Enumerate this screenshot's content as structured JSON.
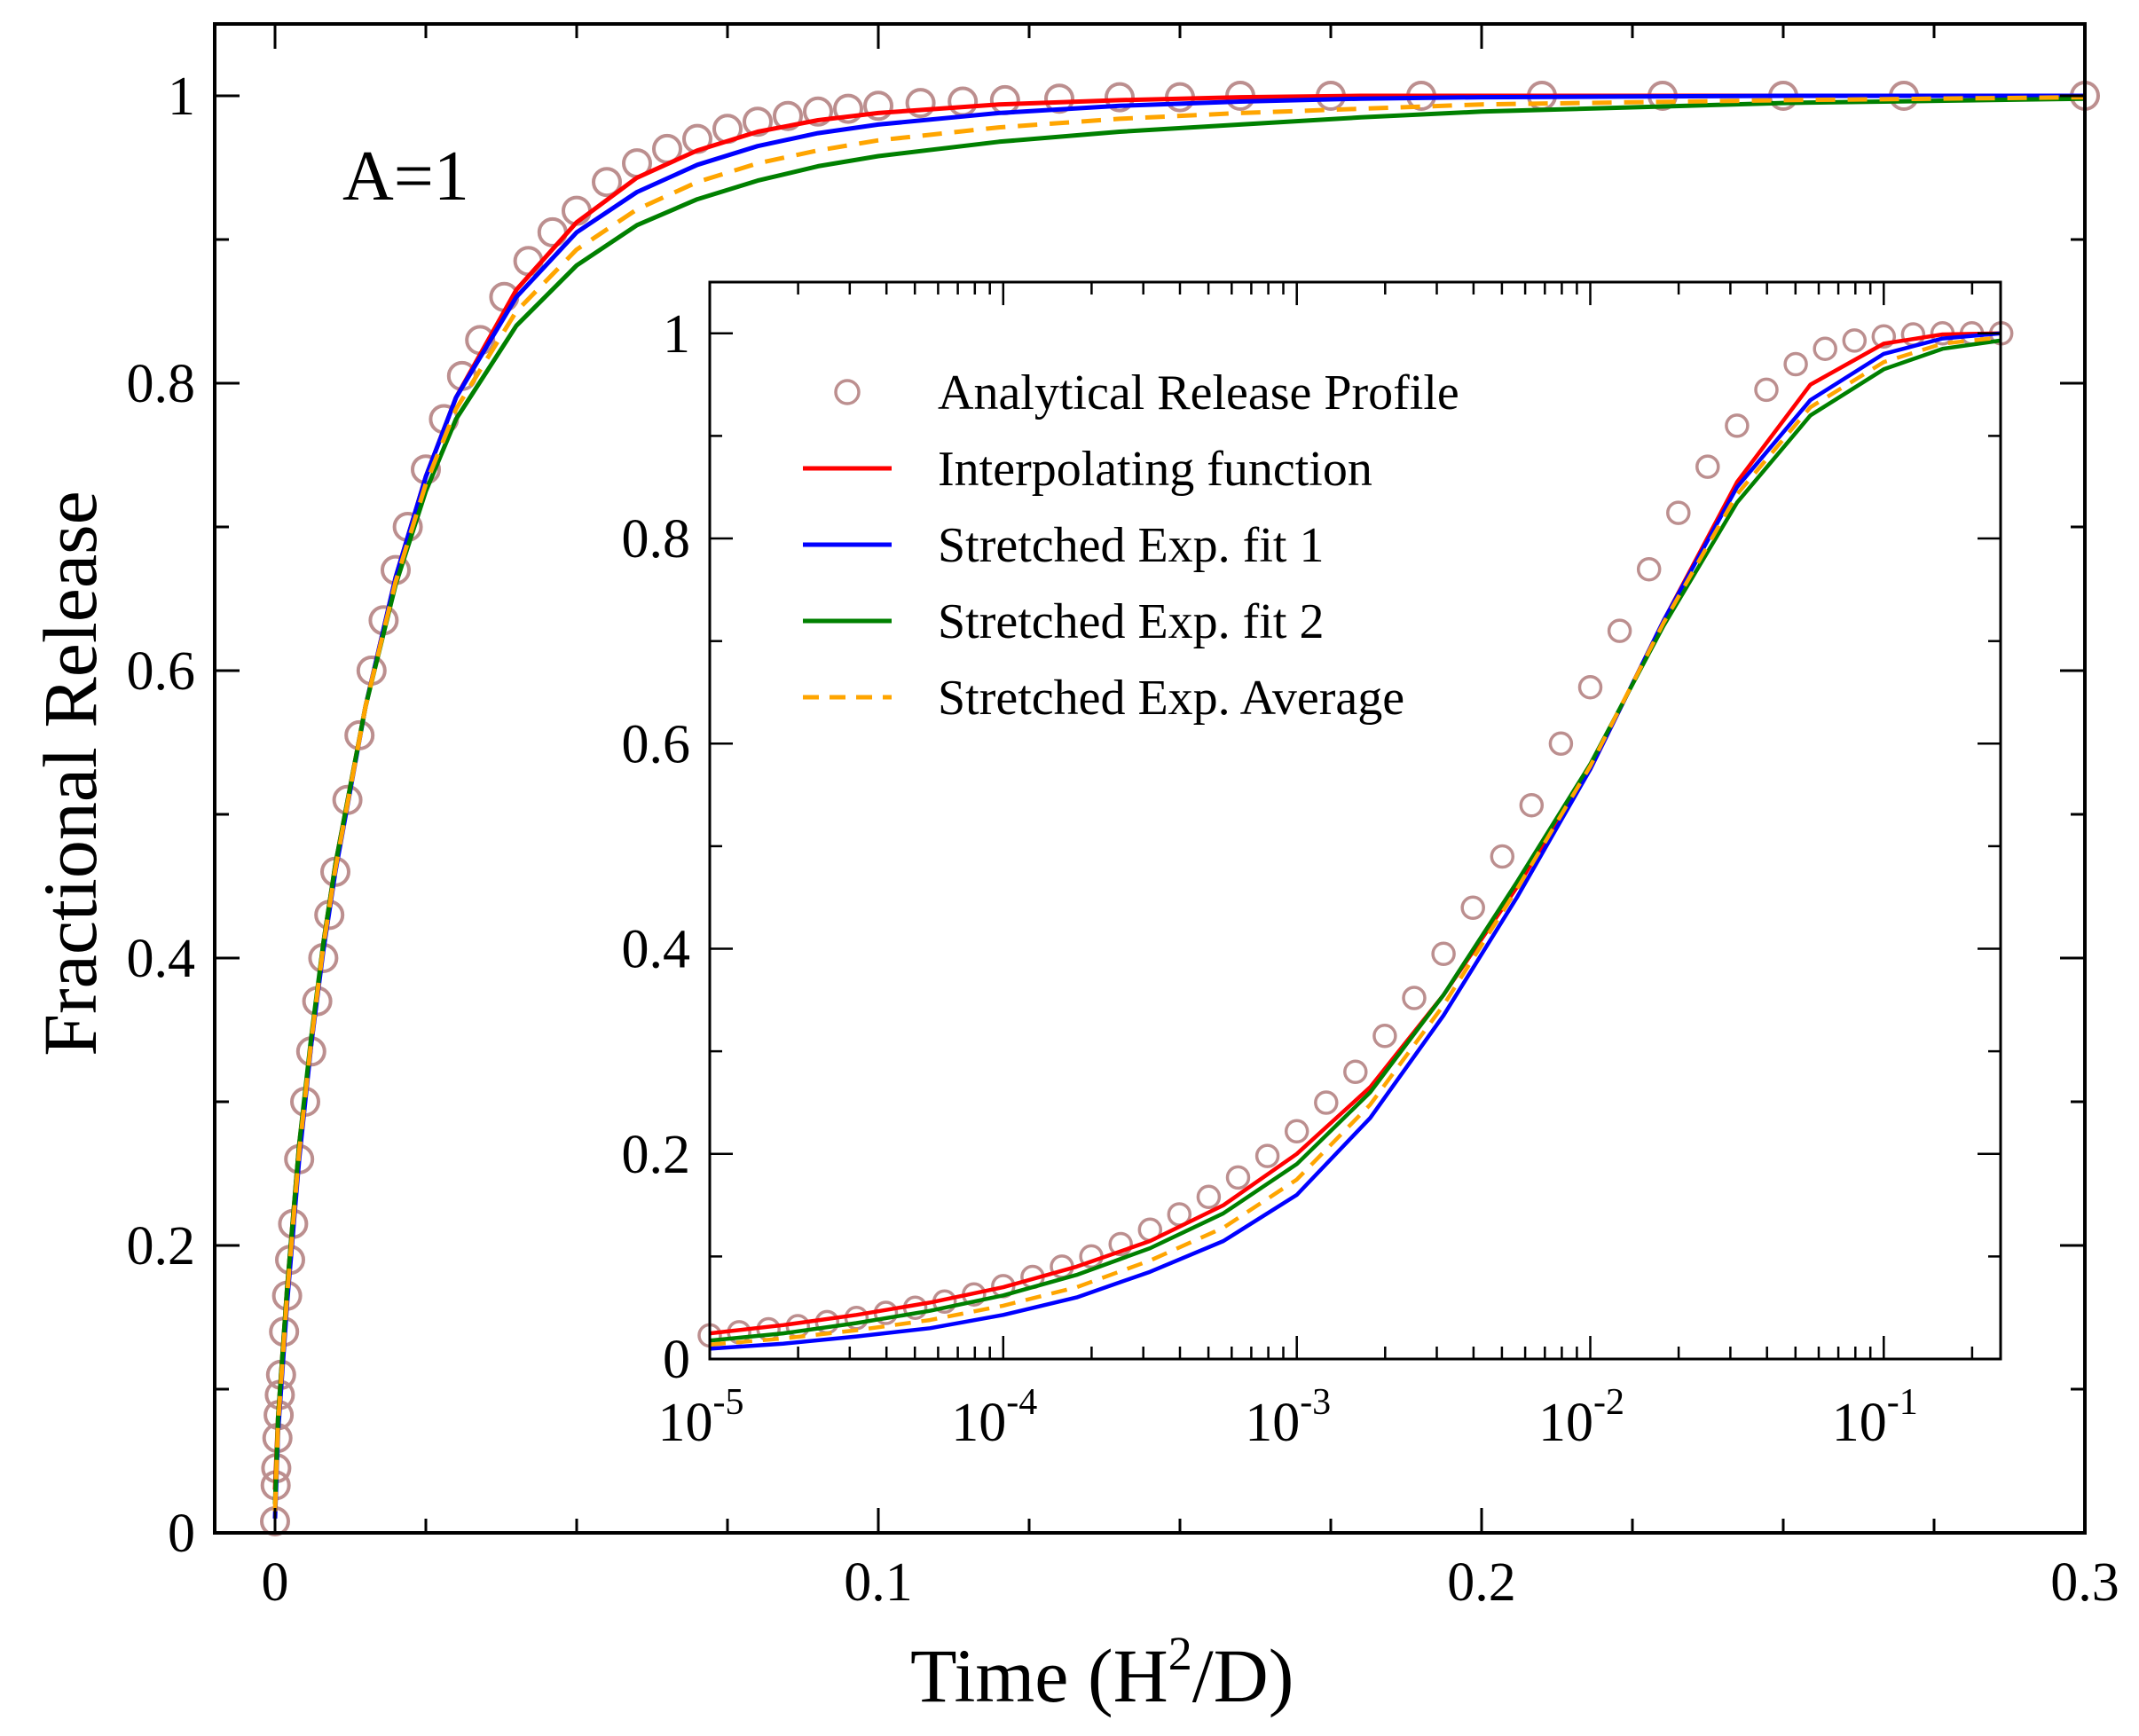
{
  "colors": {
    "analytical": "#bc8f8f",
    "interpolating": "#ff0000",
    "fit1": "#0000ff",
    "fit2": "#008000",
    "average": "#ffa500",
    "annotation": "#7b2fbe"
  },
  "chart_data": [
    {
      "id": "main",
      "type": "line",
      "xlabel": "Time  (H2/D)",
      "xlabel_parts": {
        "base": "Time  (H",
        "sup": "2",
        "tail": "/D)"
      },
      "ylabel": "Fractional Release",
      "xlim": [
        -0.01,
        0.3
      ],
      "ylim": [
        0,
        1.05
      ],
      "xticks": [
        0,
        0.1,
        0.2,
        0.3
      ],
      "xtick_labels": [
        "0",
        "0.1",
        "0.2",
        "0.3"
      ],
      "yticks": [
        0,
        0.2,
        0.4,
        0.6,
        0.8,
        1
      ],
      "ytick_labels": [
        "0",
        "0.2",
        "0.4",
        "0.6",
        "0.8",
        "1"
      ],
      "annotation": "A=1",
      "analytical_markers": {
        "x": [
          0,
          0.0001,
          0.0002,
          0.0004,
          0.0006,
          0.0008,
          0.001,
          0.0015,
          0.002,
          0.0025,
          0.003,
          0.004,
          0.005,
          0.006,
          0.007,
          0.008,
          0.009,
          0.01,
          0.012,
          0.014,
          0.016,
          0.018,
          0.02,
          0.022,
          0.025,
          0.028,
          0.031,
          0.034,
          0.038,
          0.042,
          0.046,
          0.05,
          0.055,
          0.06,
          0.065,
          0.07,
          0.075,
          0.08,
          0.085,
          0.09,
          0.095,
          0.1,
          0.107,
          0.114,
          0.121,
          0.13,
          0.14,
          0.15,
          0.16,
          0.175,
          0.19,
          0.21,
          0.23,
          0.25,
          0.27,
          0.3
        ],
        "y": [
          0.008,
          0.033,
          0.045,
          0.066,
          0.082,
          0.096,
          0.11,
          0.14,
          0.165,
          0.19,
          0.215,
          0.26,
          0.3,
          0.335,
          0.37,
          0.4,
          0.43,
          0.46,
          0.51,
          0.555,
          0.6,
          0.635,
          0.67,
          0.7,
          0.74,
          0.775,
          0.805,
          0.83,
          0.86,
          0.885,
          0.905,
          0.92,
          0.94,
          0.953,
          0.963,
          0.97,
          0.977,
          0.982,
          0.986,
          0.989,
          0.991,
          0.993,
          0.995,
          0.996,
          0.997,
          0.998,
          0.999,
          0.999,
          1,
          1,
          1,
          1,
          1,
          1,
          1,
          1
        ]
      },
      "series": [
        {
          "name": "Interpolating function",
          "x": [
            0,
            0.0005,
            0.001,
            0.002,
            0.004,
            0.006,
            0.008,
            0.01,
            0.015,
            0.02,
            0.025,
            0.03,
            0.04,
            0.05,
            0.06,
            0.07,
            0.08,
            0.09,
            0.1,
            0.12,
            0.14,
            0.16,
            0.18,
            0.2,
            0.25,
            0.3
          ],
          "y": [
            0.03,
            0.08,
            0.11,
            0.17,
            0.27,
            0.34,
            0.41,
            0.465,
            0.575,
            0.665,
            0.735,
            0.79,
            0.865,
            0.912,
            0.943,
            0.962,
            0.975,
            0.983,
            0.988,
            0.994,
            0.997,
            0.999,
            1,
            1,
            1,
            1
          ]
        },
        {
          "name": "Stretched Exp. fit 1",
          "x": [
            0,
            0.0005,
            0.001,
            0.002,
            0.004,
            0.006,
            0.008,
            0.01,
            0.015,
            0.02,
            0.025,
            0.03,
            0.04,
            0.05,
            0.06,
            0.07,
            0.08,
            0.09,
            0.1,
            0.12,
            0.14,
            0.16,
            0.18,
            0.2,
            0.25,
            0.3
          ],
          "y": [
            0.01,
            0.07,
            0.1,
            0.16,
            0.26,
            0.34,
            0.405,
            0.46,
            0.575,
            0.665,
            0.735,
            0.79,
            0.86,
            0.905,
            0.933,
            0.952,
            0.965,
            0.974,
            0.98,
            0.988,
            0.993,
            0.996,
            0.998,
            0.999,
            1,
            1
          ]
        },
        {
          "name": "Stretched Exp. fit 2",
          "x": [
            0,
            0.0005,
            0.001,
            0.002,
            0.004,
            0.006,
            0.008,
            0.01,
            0.015,
            0.02,
            0.025,
            0.03,
            0.04,
            0.05,
            0.06,
            0.07,
            0.08,
            0.09,
            0.1,
            0.12,
            0.14,
            0.16,
            0.18,
            0.2,
            0.25,
            0.3
          ],
          "y": [
            0.02,
            0.08,
            0.11,
            0.17,
            0.27,
            0.345,
            0.41,
            0.465,
            0.575,
            0.66,
            0.725,
            0.775,
            0.84,
            0.882,
            0.91,
            0.928,
            0.941,
            0.951,
            0.958,
            0.968,
            0.975,
            0.98,
            0.985,
            0.989,
            0.995,
            0.998
          ]
        },
        {
          "name": "Stretched Exp. Average",
          "dashed": true,
          "x": [
            0,
            0.0005,
            0.001,
            0.002,
            0.004,
            0.006,
            0.008,
            0.01,
            0.015,
            0.02,
            0.025,
            0.03,
            0.04,
            0.05,
            0.06,
            0.07,
            0.08,
            0.09,
            0.1,
            0.12,
            0.14,
            0.16,
            0.18,
            0.2,
            0.25,
            0.3
          ],
          "y": [
            0.015,
            0.075,
            0.105,
            0.165,
            0.265,
            0.342,
            0.408,
            0.462,
            0.575,
            0.662,
            0.73,
            0.782,
            0.85,
            0.893,
            0.921,
            0.94,
            0.953,
            0.962,
            0.969,
            0.978,
            0.984,
            0.988,
            0.991,
            0.994,
            0.997,
            0.999
          ]
        }
      ]
    },
    {
      "id": "inset",
      "type": "line",
      "x_scale": "log",
      "xlim": [
        1e-05,
        0.25
      ],
      "ylim": [
        0,
        1.05
      ],
      "xticks": [
        1e-05,
        0.0001,
        0.001,
        0.01,
        0.1
      ],
      "xtick_labels": [
        {
          "base": "10",
          "exp": "-5"
        },
        {
          "base": "10",
          "exp": "-4"
        },
        {
          "base": "10",
          "exp": "-3"
        },
        {
          "base": "10",
          "exp": "-2"
        },
        {
          "base": "10",
          "exp": "-1"
        }
      ],
      "yticks": [
        0,
        0.2,
        0.4,
        0.6,
        0.8,
        1
      ],
      "ytick_labels": [
        "0",
        "0.2",
        "0.4",
        "0.6",
        "0.8",
        "1"
      ],
      "legend": {
        "location": "upper-left",
        "entries": [
          {
            "label": "Analytical Release Profile",
            "key": "analytical",
            "style": "marker"
          },
          {
            "label": "Interpolating function",
            "key": "interpolating",
            "style": "line"
          },
          {
            "label": "Stretched Exp. fit 1",
            "key": "fit1",
            "style": "line"
          },
          {
            "label": "Stretched Exp. fit 2",
            "key": "fit2",
            "style": "line"
          },
          {
            "label": "Stretched Exp. Average",
            "key": "average",
            "style": "dashed"
          }
        ]
      },
      "analytical_markers": {
        "log10_x": [
          -5,
          -4.9,
          -4.8,
          -4.7,
          -4.6,
          -4.5,
          -4.4,
          -4.3,
          -4.2,
          -4.1,
          -4,
          -3.9,
          -3.8,
          -3.7,
          -3.6,
          -3.5,
          -3.4,
          -3.3,
          -3.2,
          -3.1,
          -3,
          -2.9,
          -2.8,
          -2.7,
          -2.6,
          -2.5,
          -2.4,
          -2.3,
          -2.2,
          -2.1,
          -2,
          -1.9,
          -1.8,
          -1.7,
          -1.6,
          -1.5,
          -1.4,
          -1.3,
          -1.2,
          -1.1,
          -1,
          -0.9,
          -0.8,
          -0.7,
          -0.6
        ],
        "y": [
          0.023,
          0.026,
          0.029,
          0.032,
          0.036,
          0.04,
          0.045,
          0.05,
          0.056,
          0.063,
          0.071,
          0.08,
          0.09,
          0.1,
          0.112,
          0.126,
          0.141,
          0.158,
          0.177,
          0.198,
          0.222,
          0.25,
          0.28,
          0.315,
          0.352,
          0.395,
          0.44,
          0.49,
          0.54,
          0.6,
          0.655,
          0.71,
          0.77,
          0.825,
          0.87,
          0.91,
          0.945,
          0.97,
          0.985,
          0.993,
          0.997,
          0.999,
          1,
          1,
          1
        ]
      },
      "series": [
        {
          "name": "Interpolating function",
          "log10_x": [
            -5,
            -4.75,
            -4.5,
            -4.25,
            -4,
            -3.75,
            -3.5,
            -3.25,
            -3,
            -2.75,
            -2.5,
            -2.25,
            -2,
            -1.75,
            -1.5,
            -1.25,
            -1,
            -0.8,
            -0.6
          ],
          "y": [
            0.025,
            0.033,
            0.043,
            0.055,
            0.07,
            0.09,
            0.115,
            0.15,
            0.2,
            0.265,
            0.355,
            0.46,
            0.575,
            0.72,
            0.855,
            0.95,
            0.99,
            0.999,
            1
          ]
        },
        {
          "name": "Stretched Exp. fit 1",
          "log10_x": [
            -5,
            -4.75,
            -4.5,
            -4.25,
            -4,
            -3.75,
            -3.5,
            -3.25,
            -3,
            -2.75,
            -2.5,
            -2.25,
            -2,
            -1.75,
            -1.5,
            -1.25,
            -1,
            -0.8,
            -0.6
          ],
          "y": [
            0.01,
            0.015,
            0.022,
            0.03,
            0.043,
            0.06,
            0.085,
            0.115,
            0.16,
            0.235,
            0.335,
            0.45,
            0.575,
            0.72,
            0.85,
            0.935,
            0.98,
            0.995,
            1
          ]
        },
        {
          "name": "Stretched Exp. fit 2",
          "log10_x": [
            -5,
            -4.75,
            -4.5,
            -4.25,
            -4,
            -3.75,
            -3.5,
            -3.25,
            -3,
            -2.75,
            -2.5,
            -2.25,
            -2,
            -1.75,
            -1.5,
            -1.25,
            -1,
            -0.8,
            -0.6
          ],
          "y": [
            0.018,
            0.025,
            0.035,
            0.047,
            0.062,
            0.082,
            0.108,
            0.142,
            0.19,
            0.26,
            0.355,
            0.465,
            0.58,
            0.715,
            0.835,
            0.92,
            0.965,
            0.985,
            0.993
          ]
        },
        {
          "name": "Stretched Exp. Average",
          "dashed": true,
          "log10_x": [
            -5,
            -4.75,
            -4.5,
            -4.25,
            -4,
            -3.75,
            -3.5,
            -3.25,
            -3,
            -2.75,
            -2.5,
            -2.25,
            -2,
            -1.75,
            -1.5,
            -1.25,
            -1,
            -0.8,
            -0.6
          ],
          "y": [
            0.014,
            0.02,
            0.028,
            0.038,
            0.052,
            0.07,
            0.096,
            0.128,
            0.175,
            0.248,
            0.345,
            0.458,
            0.578,
            0.718,
            0.843,
            0.928,
            0.972,
            0.99,
            0.996
          ]
        }
      ]
    }
  ]
}
